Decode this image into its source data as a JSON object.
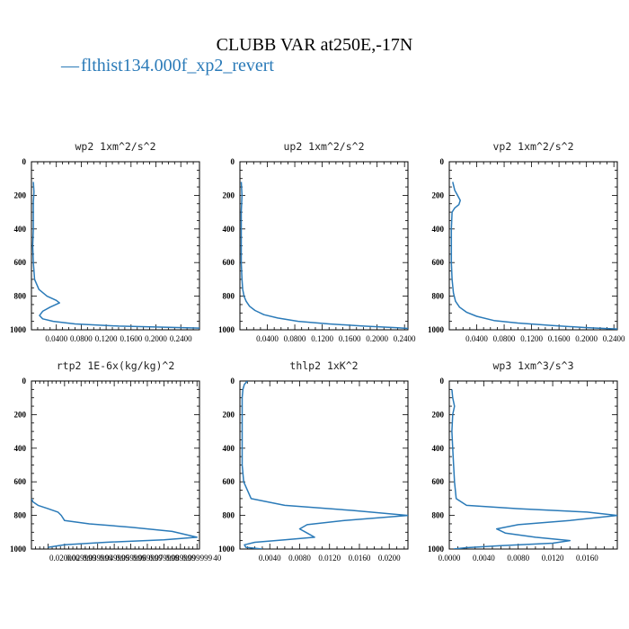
{
  "title": "CLUBB VAR at250E,-17N",
  "legend": {
    "mark": "—",
    "label": "flthist134.000f_xp2_revert",
    "color": "#2a7ab8"
  },
  "chart_data": [
    {
      "type": "line",
      "panel_title": "wp2  1xm^2/s^2",
      "xlim": [
        0,
        0.27
      ],
      "ylim": [
        1000,
        0
      ],
      "x_ticks": [
        "0.0400",
        "0.0800",
        "0.1200",
        "0.1600",
        "0.2000",
        "0.2400"
      ],
      "y_ticks": [
        "0",
        "200",
        "400",
        "600",
        "800",
        "1000"
      ],
      "series": [
        {
          "x": [
            0.003,
            0.004,
            0.003,
            0.003,
            0.003,
            0.002,
            0.003,
            0.005,
            0.012,
            0.025,
            0.04,
            0.045,
            0.03,
            0.018,
            0.013,
            0.018,
            0.035,
            0.07,
            0.14,
            0.22,
            0.27
          ],
          "y": [
            120,
            180,
            240,
            300,
            400,
            500,
            600,
            700,
            760,
            800,
            825,
            840,
            865,
            890,
            915,
            935,
            950,
            965,
            978,
            985,
            990
          ]
        }
      ]
    },
    {
      "type": "line",
      "panel_title": "up2  1xm^2/s^2",
      "xlim": [
        0,
        0.245
      ],
      "ylim": [
        1000,
        0
      ],
      "x_ticks": [
        "0.0400",
        "0.0800",
        "0.1200",
        "0.1600",
        "0.2000",
        "0.2400"
      ],
      "y_ticks": [
        "0",
        "200",
        "400",
        "600",
        "800",
        "1000"
      ],
      "series": [
        {
          "x": [
            0.002,
            0.003,
            0.002,
            0.002,
            0.002,
            0.002,
            0.003,
            0.004,
            0.006,
            0.009,
            0.014,
            0.022,
            0.035,
            0.055,
            0.085,
            0.13,
            0.18,
            0.23,
            0.26
          ],
          "y": [
            120,
            200,
            300,
            400,
            500,
            600,
            700,
            760,
            800,
            830,
            860,
            885,
            910,
            930,
            950,
            965,
            978,
            988,
            995
          ]
        }
      ]
    },
    {
      "type": "line",
      "panel_title": "vp2  1xm^2/s^2",
      "xlim": [
        0,
        0.245
      ],
      "ylim": [
        1000,
        0
      ],
      "x_ticks": [
        "0.0400",
        "0.0800",
        "0.1200",
        "0.1600",
        "0.2000",
        "0.2400"
      ],
      "y_ticks": [
        "0",
        "200",
        "400",
        "600",
        "800",
        "1000"
      ],
      "series": [
        {
          "x": [
            0.005,
            0.008,
            0.012,
            0.016,
            0.014,
            0.008,
            0.004,
            0.003,
            0.003,
            0.003,
            0.004,
            0.006,
            0.009,
            0.015,
            0.025,
            0.04,
            0.065,
            0.1,
            0.15,
            0.2,
            0.245
          ],
          "y": [
            120,
            170,
            200,
            230,
            255,
            275,
            300,
            400,
            500,
            600,
            700,
            780,
            830,
            865,
            895,
            920,
            945,
            960,
            975,
            987,
            995
          ]
        }
      ]
    },
    {
      "type": "line",
      "panel_title": "rtp2  1E-6x(kg/kg)^2",
      "xlim": [
        0,
        0.1015
      ],
      "ylim": [
        1000,
        0
      ],
      "x_ticks": [
        "0.0200",
        "0.0300",
        "0.0400",
        "0.0500",
        "0.0600",
        "0.0700",
        "0.0800",
        "0.0900",
        "0.1000"
      ],
      "x_tick_text": [
        "0.020000",
        "0.029999",
        "0.039999",
        "0.049999",
        "0.059999",
        "0.069999",
        "0.079999",
        "0.089999",
        "0.099999"
      ],
      "x_tick_suffix": "40",
      "y_ticks": [
        "0",
        "200",
        "400",
        "600",
        "800",
        "1000"
      ],
      "series": [
        {
          "x": [
            0.0,
            0.001,
            0.004,
            0.01,
            0.016,
            0.018,
            0.02,
            0.035,
            0.06,
            0.085,
            0.1,
            0.08,
            0.045,
            0.02,
            0.01
          ],
          "y": [
            700,
            720,
            740,
            760,
            780,
            800,
            830,
            850,
            870,
            895,
            930,
            945,
            960,
            975,
            990
          ]
        }
      ]
    },
    {
      "type": "line",
      "panel_title": "thlp2  1xK^2",
      "xlim": [
        0,
        0.0225
      ],
      "ylim": [
        1000,
        0
      ],
      "x_ticks": [
        "0.0040",
        "0.0080",
        "0.0120",
        "0.0160",
        "0.0200"
      ],
      "y_ticks": [
        "0",
        "200",
        "400",
        "600",
        "800",
        "1000"
      ],
      "series": [
        {
          "x": [
            0.001,
            0.0006,
            0.0004,
            0.0003,
            0.0003,
            0.0003,
            0.0003,
            0.0003,
            0.0005,
            0.0015,
            0.006,
            0.015,
            0.0225,
            0.014,
            0.009,
            0.008,
            0.009,
            0.01,
            0.006,
            0.002,
            0.0006,
            0.0008,
            0.003
          ],
          "y": [
            0,
            20,
            50,
            100,
            200,
            300,
            400,
            500,
            600,
            700,
            740,
            770,
            800,
            830,
            855,
            880,
            905,
            930,
            945,
            960,
            975,
            990,
            1000
          ]
        }
      ]
    },
    {
      "type": "line",
      "panel_title": "wp3  1xm^3/s^3",
      "xlim": [
        0,
        0.0195
      ],
      "ylim": [
        1000,
        0
      ],
      "x_ticks": [
        "0.0000",
        "0.0040",
        "0.0080",
        "0.0120",
        "0.0160"
      ],
      "y_ticks": [
        "0",
        "200",
        "400",
        "600",
        "800",
        "1000"
      ],
      "series": [
        {
          "x": [
            0.0003,
            0.0004,
            0.0006,
            0.0004,
            0.0003,
            0.0004,
            0.0005,
            0.0006,
            0.0008,
            0.002,
            0.008,
            0.016,
            0.0195,
            0.014,
            0.008,
            0.0055,
            0.0065,
            0.01,
            0.014,
            0.012,
            0.006,
            0.002,
            0.0005
          ],
          "y": [
            50,
            100,
            150,
            200,
            300,
            400,
            500,
            600,
            700,
            740,
            760,
            780,
            800,
            830,
            855,
            880,
            905,
            930,
            950,
            965,
            980,
            992,
            1000
          ]
        }
      ]
    }
  ]
}
